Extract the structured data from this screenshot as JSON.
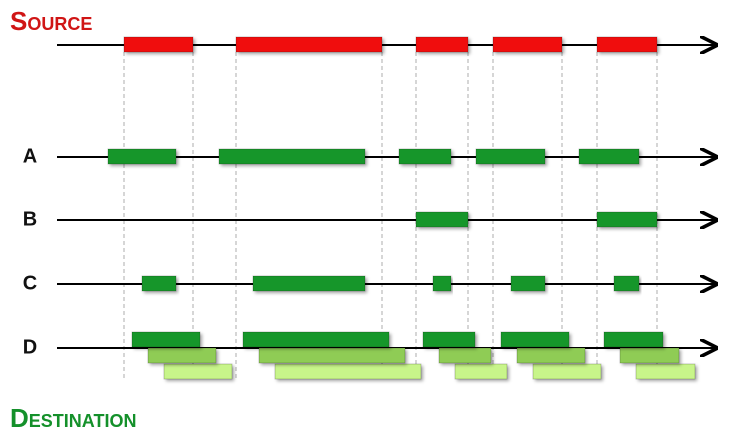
{
  "title": "Source",
  "rows": [
    "A",
    "B",
    "C",
    "D"
  ],
  "footer": "Destination"
}
